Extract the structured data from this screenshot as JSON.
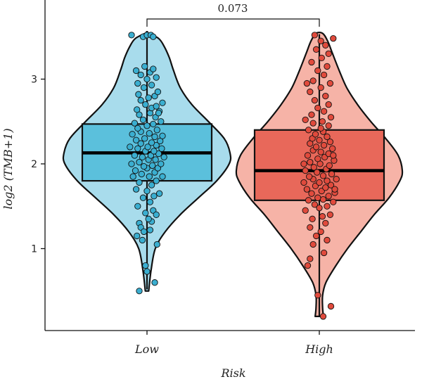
{
  "chart_data": {
    "type": "violin-box-jitter",
    "xlabel": "Risk",
    "ylabel": "log2 (TMB+1)",
    "categories": [
      "Low",
      "High"
    ],
    "ylim": [
      0,
      3.7
    ],
    "yticks": [
      1,
      2,
      3
    ],
    "pvalue_label": "0.073",
    "groups": [
      {
        "name": "Low",
        "violin_fill": "#a8dcec",
        "box_fill": "#5bc0dc",
        "point_fill": "#3aaed0",
        "box": {
          "q1": 1.8,
          "median": 2.13,
          "q3": 2.47,
          "whisker_low": 0.52,
          "whisker_high": 3.53
        },
        "violin_profile": [
          [
            0.5,
            0.02
          ],
          [
            0.75,
            0.05
          ],
          [
            1.0,
            0.1
          ],
          [
            1.2,
            0.22
          ],
          [
            1.4,
            0.4
          ],
          [
            1.6,
            0.62
          ],
          [
            1.8,
            0.84
          ],
          [
            2.0,
            0.99
          ],
          [
            2.13,
            1.0
          ],
          [
            2.3,
            0.93
          ],
          [
            2.5,
            0.74
          ],
          [
            2.7,
            0.54
          ],
          [
            2.9,
            0.4
          ],
          [
            3.1,
            0.32
          ],
          [
            3.25,
            0.27
          ],
          [
            3.38,
            0.21
          ],
          [
            3.48,
            0.14
          ],
          [
            3.55,
            0.0
          ]
        ],
        "points": [
          [
            -0.1,
            0.5
          ],
          [
            0.1,
            0.6
          ],
          [
            -0.02,
            0.8
          ],
          [
            0.0,
            0.73
          ],
          [
            -0.06,
            1.1
          ],
          [
            -0.1,
            1.3
          ],
          [
            0.06,
            1.32
          ],
          [
            0.04,
            1.22
          ],
          [
            -0.08,
            1.25
          ],
          [
            -0.04,
            1.2
          ],
          [
            0.08,
            1.45
          ],
          [
            0.12,
            1.4
          ],
          [
            -0.12,
            1.5
          ],
          [
            0.04,
            1.55
          ],
          [
            -0.05,
            1.6
          ],
          [
            0.09,
            1.62
          ],
          [
            0.16,
            1.65
          ],
          [
            -0.14,
            1.7
          ],
          [
            0.0,
            1.68
          ],
          [
            0.06,
            1.75
          ],
          [
            -0.1,
            1.78
          ],
          [
            0.12,
            1.8
          ],
          [
            -0.18,
            1.85
          ],
          [
            0.03,
            1.85
          ],
          [
            0.2,
            1.85
          ],
          [
            -0.07,
            1.88
          ],
          [
            0.1,
            1.9
          ],
          [
            -0.15,
            1.92
          ],
          [
            0.0,
            1.95
          ],
          [
            0.14,
            1.95
          ],
          [
            -0.04,
            1.97
          ],
          [
            0.07,
            1.98
          ],
          [
            -0.2,
            2.0
          ],
          [
            0.18,
            2.0
          ],
          [
            -0.1,
            2.02
          ],
          [
            0.02,
            2.05
          ],
          [
            0.11,
            2.05
          ],
          [
            -0.06,
            2.08
          ],
          [
            0.22,
            2.08
          ],
          [
            -0.16,
            2.1
          ],
          [
            0.05,
            2.1
          ],
          [
            0.15,
            2.12
          ],
          [
            -0.02,
            2.15
          ],
          [
            0.09,
            2.15
          ],
          [
            -0.12,
            2.18
          ],
          [
            0.19,
            2.18
          ],
          [
            -0.22,
            2.2
          ],
          [
            0.01,
            2.2
          ],
          [
            0.12,
            2.22
          ],
          [
            -0.08,
            2.24
          ],
          [
            0.06,
            2.25
          ],
          [
            0.17,
            2.27
          ],
          [
            -0.14,
            2.28
          ],
          [
            -0.03,
            2.3
          ],
          [
            0.1,
            2.32
          ],
          [
            0.2,
            2.33
          ],
          [
            -0.19,
            2.35
          ],
          [
            0.03,
            2.36
          ],
          [
            -0.08,
            2.38
          ],
          [
            0.13,
            2.4
          ],
          [
            -0.12,
            2.42
          ],
          [
            0.0,
            2.45
          ],
          [
            0.08,
            2.47
          ],
          [
            -0.16,
            2.48
          ],
          [
            0.18,
            2.5
          ],
          [
            -0.05,
            2.52
          ],
          [
            0.11,
            2.55
          ],
          [
            -0.1,
            2.58
          ],
          [
            0.04,
            2.6
          ],
          [
            0.16,
            2.62
          ],
          [
            -0.13,
            2.64
          ],
          [
            0.06,
            2.66
          ],
          [
            0.12,
            2.68
          ],
          [
            -0.02,
            2.7
          ],
          [
            0.2,
            2.72
          ],
          [
            -0.08,
            2.75
          ],
          [
            0.02,
            2.78
          ],
          [
            0.1,
            2.8
          ],
          [
            -0.11,
            2.82
          ],
          [
            0.14,
            2.85
          ],
          [
            -0.04,
            2.9
          ],
          [
            0.06,
            2.93
          ],
          [
            -0.12,
            2.95
          ],
          [
            0.0,
            3.0
          ],
          [
            0.12,
            3.02
          ],
          [
            -0.08,
            3.05
          ],
          [
            0.04,
            3.08
          ],
          [
            -0.14,
            3.1
          ],
          [
            0.08,
            3.12
          ],
          [
            -0.03,
            3.15
          ],
          [
            -0.05,
            3.5
          ],
          [
            0.0,
            3.52
          ],
          [
            0.05,
            3.52
          ],
          [
            0.08,
            3.5
          ],
          [
            -0.2,
            3.52
          ],
          [
            0.13,
            1.05
          ],
          [
            -0.13,
            1.15
          ],
          [
            0.02,
            1.35
          ],
          [
            -0.02,
            1.42
          ],
          [
            0.15,
            2.6
          ]
        ]
      },
      {
        "name": "High",
        "violin_fill": "#f6b3a7",
        "box_fill": "#e8685a",
        "point_fill": "#e04a3c",
        "box": {
          "q1": 1.57,
          "median": 1.92,
          "q3": 2.4,
          "whisker_low": 0.2,
          "whisker_high": 3.53
        },
        "violin_profile": [
          [
            0.2,
            0.05
          ],
          [
            0.3,
            0.04
          ],
          [
            0.45,
            0.04
          ],
          [
            0.6,
            0.08
          ],
          [
            0.8,
            0.2
          ],
          [
            1.0,
            0.34
          ],
          [
            1.2,
            0.5
          ],
          [
            1.4,
            0.66
          ],
          [
            1.6,
            0.84
          ],
          [
            1.8,
            0.97
          ],
          [
            1.92,
            1.0
          ],
          [
            2.1,
            0.95
          ],
          [
            2.3,
            0.8
          ],
          [
            2.5,
            0.62
          ],
          [
            2.7,
            0.46
          ],
          [
            2.9,
            0.33
          ],
          [
            3.1,
            0.24
          ],
          [
            3.3,
            0.16
          ],
          [
            3.45,
            0.1
          ],
          [
            3.54,
            0.04
          ]
        ],
        "points": [
          [
            0.05,
            0.2
          ],
          [
            0.15,
            0.32
          ],
          [
            -0.02,
            0.45
          ],
          [
            -0.15,
            0.8
          ],
          [
            -0.12,
            0.88
          ],
          [
            0.06,
            0.95
          ],
          [
            -0.08,
            1.05
          ],
          [
            0.1,
            1.1
          ],
          [
            -0.04,
            1.15
          ],
          [
            0.02,
            1.2
          ],
          [
            -0.12,
            1.25
          ],
          [
            0.08,
            1.3
          ],
          [
            -0.09,
            1.35
          ],
          [
            0.04,
            1.38
          ],
          [
            0.14,
            1.4
          ],
          [
            -0.18,
            1.45
          ],
          [
            0.0,
            1.48
          ],
          [
            0.1,
            1.5
          ],
          [
            -0.06,
            1.52
          ],
          [
            0.18,
            1.55
          ],
          [
            -0.14,
            1.57
          ],
          [
            0.05,
            1.58
          ],
          [
            -0.02,
            1.6
          ],
          [
            0.12,
            1.62
          ],
          [
            -0.1,
            1.65
          ],
          [
            0.2,
            1.66
          ],
          [
            0.03,
            1.68
          ],
          [
            -0.16,
            1.7
          ],
          [
            0.08,
            1.72
          ],
          [
            -0.05,
            1.74
          ],
          [
            0.15,
            1.75
          ],
          [
            -0.2,
            1.78
          ],
          [
            0.0,
            1.78
          ],
          [
            0.1,
            1.8
          ],
          [
            -0.08,
            1.82
          ],
          [
            0.22,
            1.82
          ],
          [
            -0.13,
            1.85
          ],
          [
            0.05,
            1.86
          ],
          [
            0.16,
            1.88
          ],
          [
            -0.03,
            1.9
          ],
          [
            -0.18,
            1.92
          ],
          [
            0.09,
            1.94
          ],
          [
            -0.07,
            1.96
          ],
          [
            0.13,
            1.98
          ],
          [
            0.01,
            2.0
          ],
          [
            -0.12,
            2.02
          ],
          [
            0.19,
            2.04
          ],
          [
            -0.02,
            2.06
          ],
          [
            0.07,
            2.08
          ],
          [
            -0.15,
            2.1
          ],
          [
            0.12,
            2.12
          ],
          [
            0.02,
            2.14
          ],
          [
            -0.08,
            2.16
          ],
          [
            0.17,
            2.18
          ],
          [
            -0.04,
            2.2
          ],
          [
            0.06,
            2.22
          ],
          [
            -0.12,
            2.24
          ],
          [
            0.14,
            2.26
          ],
          [
            0.0,
            2.28
          ],
          [
            -0.09,
            2.3
          ],
          [
            0.1,
            2.32
          ],
          [
            -0.05,
            2.35
          ],
          [
            0.05,
            2.38
          ],
          [
            -0.14,
            2.4
          ],
          [
            0.02,
            2.42
          ],
          [
            0.12,
            2.45
          ],
          [
            -0.08,
            2.48
          ],
          [
            0.04,
            2.5
          ],
          [
            -0.18,
            2.52
          ],
          [
            0.15,
            2.55
          ],
          [
            -0.1,
            2.58
          ],
          [
            0.06,
            2.62
          ],
          [
            -0.02,
            2.66
          ],
          [
            0.12,
            2.7
          ],
          [
            -0.06,
            2.75
          ],
          [
            0.08,
            2.8
          ],
          [
            -0.12,
            2.85
          ],
          [
            0.02,
            2.9
          ],
          [
            0.14,
            2.95
          ],
          [
            -0.08,
            2.98
          ],
          [
            0.06,
            3.05
          ],
          [
            -0.02,
            3.1
          ],
          [
            0.1,
            3.15
          ],
          [
            -0.1,
            3.2
          ],
          [
            0.03,
            3.25
          ],
          [
            0.12,
            3.3
          ],
          [
            -0.04,
            3.35
          ],
          [
            0.08,
            3.4
          ],
          [
            0.02,
            3.45
          ],
          [
            -0.06,
            3.52
          ],
          [
            0.18,
            3.48
          ],
          [
            -0.16,
            2.95
          ],
          [
            0.18,
            2.1
          ],
          [
            -0.2,
            2.0
          ],
          [
            0.2,
            1.7
          ]
        ]
      }
    ]
  }
}
